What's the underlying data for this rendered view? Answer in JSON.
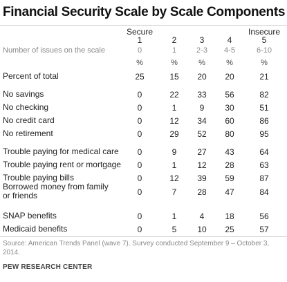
{
  "chart_data": {
    "type": "table",
    "title": "Financial Security Scale by Scale Components",
    "columns": [
      {
        "name": "Secure",
        "number": "1",
        "issues": "0",
        "unit": "%"
      },
      {
        "name": "",
        "number": "2",
        "issues": "1",
        "unit": "%"
      },
      {
        "name": "",
        "number": "3",
        "issues": "2-3",
        "unit": "%"
      },
      {
        "name": "",
        "number": "4",
        "issues": "4-5",
        "unit": "%"
      },
      {
        "name": "Insecure",
        "number": "5",
        "issues": "6-10",
        "unit": "%"
      }
    ],
    "issues_label": "Number of issues on the scale",
    "rows": [
      {
        "label": "Percent of total",
        "values": [
          "25",
          "15",
          "20",
          "20",
          "21"
        ]
      },
      {
        "label": "No savings",
        "values": [
          "0",
          "22",
          "33",
          "56",
          "82"
        ]
      },
      {
        "label": "No checking",
        "values": [
          "0",
          "1",
          "9",
          "30",
          "51"
        ]
      },
      {
        "label": "No credit card",
        "values": [
          "0",
          "12",
          "34",
          "60",
          "86"
        ]
      },
      {
        "label": "No retirement",
        "values": [
          "0",
          "29",
          "52",
          "80",
          "95"
        ]
      },
      {
        "label": "Trouble paying for medical care",
        "values": [
          "0",
          "9",
          "27",
          "43",
          "64"
        ]
      },
      {
        "label": "Trouble paying rent or mortgage",
        "values": [
          "0",
          "1",
          "12",
          "28",
          "63"
        ]
      },
      {
        "label": "Trouble paying bills",
        "values": [
          "0",
          "12",
          "39",
          "59",
          "87"
        ]
      },
      {
        "label": "Borrowed money from family or friends",
        "values": [
          "0",
          "7",
          "28",
          "47",
          "84"
        ]
      },
      {
        "label": "SNAP benefits",
        "values": [
          "0",
          "1",
          "4",
          "18",
          "56"
        ]
      },
      {
        "label": "Medicaid benefits",
        "values": [
          "0",
          "5",
          "10",
          "25",
          "57"
        ]
      }
    ],
    "source": "Source: American Trends Panel (wave 7). Survey conducted September 9 – October 3, 2014.",
    "credit": "PEW RESEARCH CENTER"
  }
}
